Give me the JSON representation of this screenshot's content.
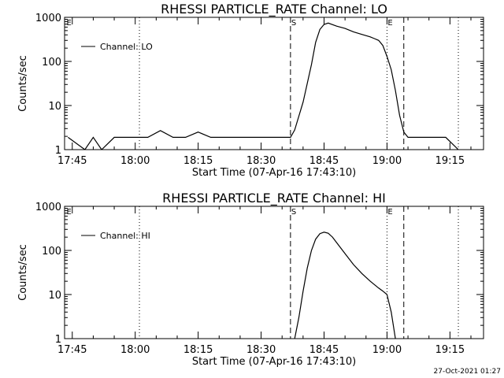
{
  "footer": {
    "timestamp": "27-Oct-2021 01:27"
  },
  "chart_data": [
    {
      "type": "line",
      "title": "RHESSI PARTICLE_RATE Channel: LO",
      "xlabel": "Start Time (07-Apr-16 17:43:10)",
      "ylabel": "Counts/sec",
      "yscale": "log",
      "ylim": [
        1,
        1000
      ],
      "xlim": [
        "17:43:10",
        "19:23:00"
      ],
      "y_ticks": [
        "1",
        "10",
        "100",
        "1000"
      ],
      "x_ticks": [
        "17:45",
        "18:00",
        "18:15",
        "18:30",
        "18:45",
        "19:00",
        "19:15"
      ],
      "legend": "top-left",
      "grid": false,
      "series": [
        {
          "name": "Channel: LO",
          "x": [
            "17:44",
            "17:48",
            "17:50",
            "17:52",
            "17:55",
            "17:58",
            "18:00",
            "18:03",
            "18:06",
            "18:09",
            "18:12",
            "18:15",
            "18:18",
            "18:21",
            "18:24",
            "18:27",
            "18:30",
            "18:33",
            "18:36",
            "18:37",
            "18:38",
            "18:40",
            "18:42",
            "18:43",
            "18:44",
            "18:45",
            "18:46",
            "18:48",
            "18:50",
            "18:52",
            "18:54",
            "18:56",
            "18:57",
            "18:58",
            "18:59",
            "19:00",
            "19:01",
            "19:02",
            "19:03",
            "19:04",
            "19:05",
            "19:08",
            "19:11",
            "19:14",
            "19:17"
          ],
          "values": [
            1.9,
            1,
            1.9,
            1,
            1.9,
            1.9,
            1.9,
            1.9,
            2.7,
            1.9,
            1.9,
            2.5,
            1.9,
            1.9,
            1.9,
            1.9,
            1.9,
            1.9,
            1.9,
            1.9,
            2.8,
            12,
            85,
            270,
            530,
            690,
            740,
            630,
            560,
            470,
            410,
            360,
            330,
            300,
            230,
            130,
            65,
            22,
            6,
            2.5,
            1.9,
            1.9,
            1.9,
            1.9,
            1
          ]
        }
      ],
      "annotations": [
        {
          "label": "S",
          "x": "18:37",
          "style": "dashed"
        },
        {
          "label": "E",
          "x": "19:00",
          "style": "dotted"
        }
      ],
      "markers": [
        {
          "x": "17:44",
          "label": "E"
        },
        {
          "x": "18:01",
          "style": "dotted"
        },
        {
          "x": "19:04",
          "style": "dashed"
        },
        {
          "x": "19:17",
          "style": "dotted"
        }
      ]
    },
    {
      "type": "line",
      "title": "RHESSI PARTICLE_RATE Channel: HI",
      "xlabel": "Start Time (07-Apr-16 17:43:10)",
      "ylabel": "Counts/sec",
      "yscale": "log",
      "ylim": [
        1,
        1000
      ],
      "xlim": [
        "17:43:10",
        "19:23:00"
      ],
      "y_ticks": [
        "1",
        "10",
        "100",
        "1000"
      ],
      "x_ticks": [
        "17:45",
        "18:00",
        "18:15",
        "18:30",
        "18:45",
        "19:00",
        "19:15"
      ],
      "legend": "top-left",
      "grid": false,
      "series": [
        {
          "name": "Channel: HI",
          "x": [
            "18:38",
            "18:39",
            "18:40",
            "18:41",
            "18:42",
            "18:43",
            "18:44",
            "18:45",
            "18:46",
            "18:47",
            "18:48",
            "18:50",
            "18:52",
            "18:54",
            "18:56",
            "18:58",
            "18:59",
            "19:00",
            "19:01",
            "19:02"
          ],
          "values": [
            1,
            3,
            12,
            40,
            100,
            180,
            240,
            260,
            245,
            200,
            150,
            85,
            48,
            30,
            20,
            14,
            12,
            10,
            4,
            1
          ]
        }
      ],
      "annotations": [
        {
          "label": "S",
          "x": "18:37",
          "style": "dashed"
        },
        {
          "label": "E",
          "x": "19:00",
          "style": "dotted"
        }
      ],
      "markers": [
        {
          "x": "17:44",
          "label": "E"
        },
        {
          "x": "18:01",
          "style": "dotted"
        },
        {
          "x": "19:04",
          "style": "dashed"
        },
        {
          "x": "19:17",
          "style": "dotted"
        }
      ]
    }
  ]
}
